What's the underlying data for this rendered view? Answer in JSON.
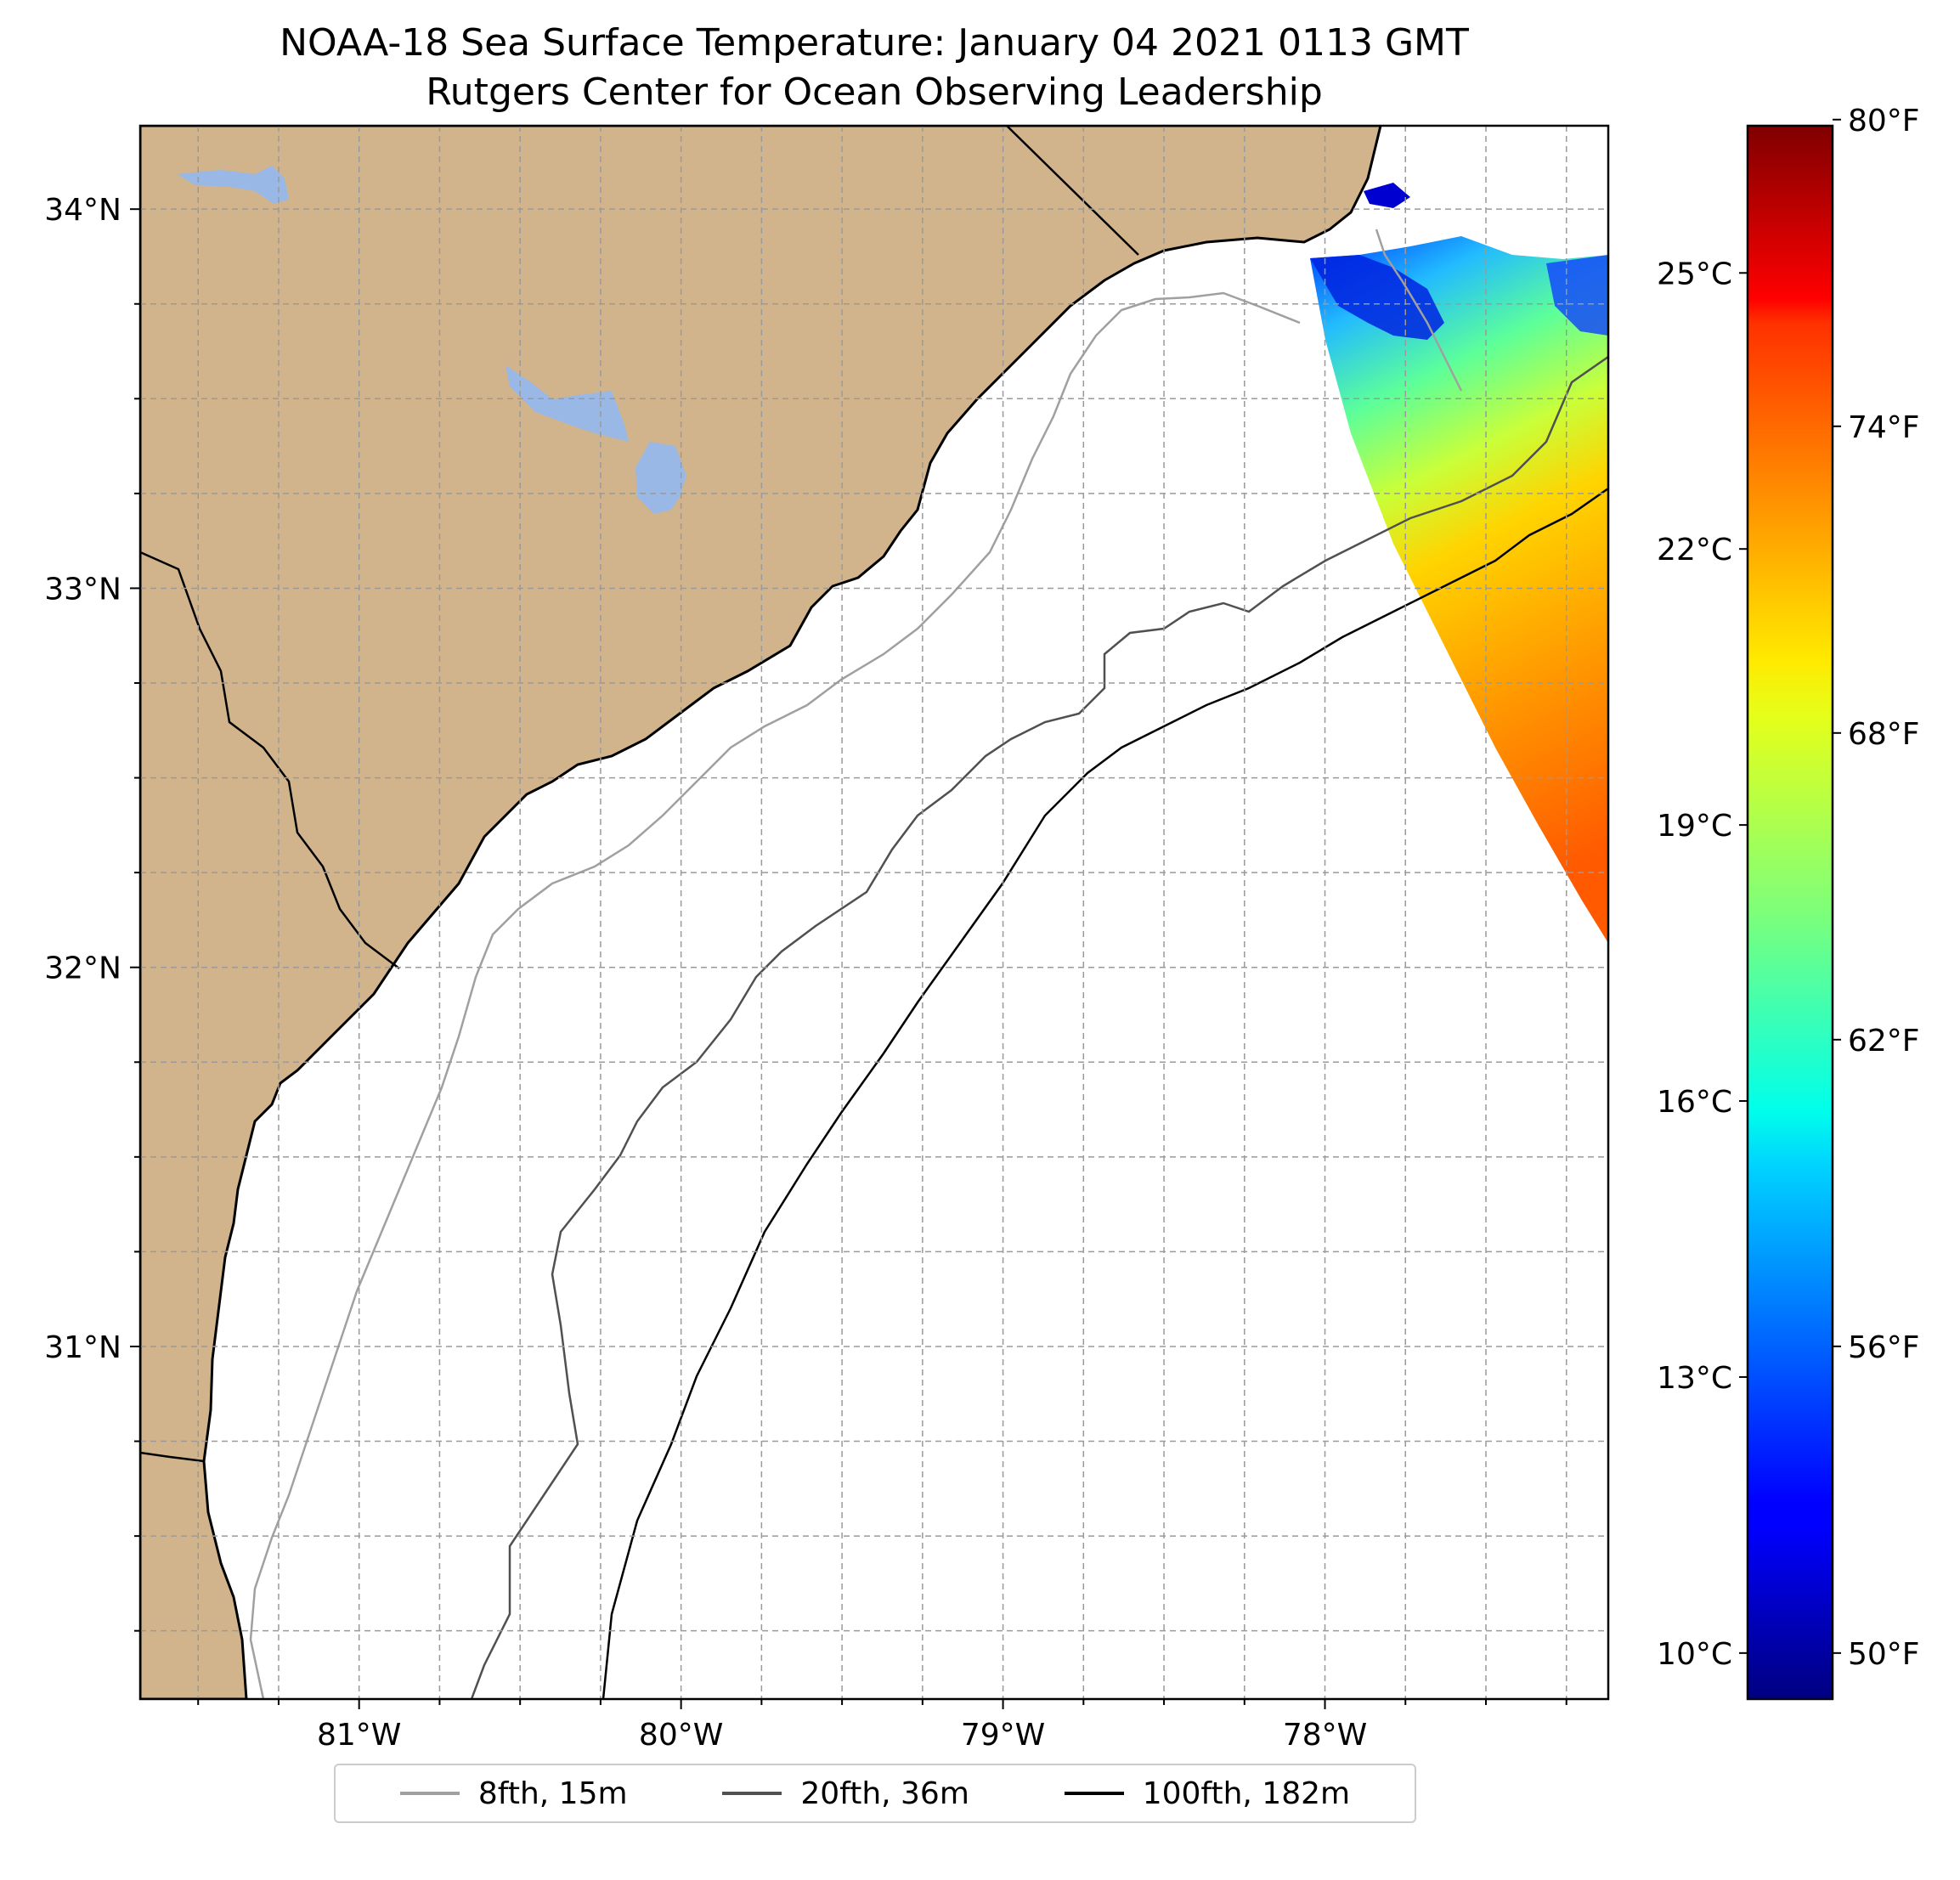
{
  "title_line1": "NOAA-18 Sea Surface Temperature: January 04 2021 0113 GMT",
  "title_line2": "Rutgers Center for Ocean Observing Leadership",
  "chart_data": {
    "type": "heatmap",
    "map_extent": {
      "lon_min": -81.68,
      "lon_max": -77.12,
      "lat_min": 30.07,
      "lat_max": 34.22
    },
    "longitude_ticks": [
      {
        "value": -81,
        "label": "81°W"
      },
      {
        "value": -80,
        "label": "80°W"
      },
      {
        "value": -79,
        "label": "79°W"
      },
      {
        "value": -78,
        "label": "78°W"
      }
    ],
    "latitude_ticks": [
      {
        "value": 34,
        "label": "34°N"
      },
      {
        "value": 33,
        "label": "33°N"
      },
      {
        "value": 32,
        "label": "32°N"
      },
      {
        "value": 31,
        "label": "31°N"
      }
    ],
    "gridlines": true,
    "land_color": "#d2b48c",
    "lake_color": "#99b8e6",
    "colorbar": {
      "colormap": "jet",
      "range_c": [
        9.5,
        26.6
      ],
      "celsius_ticks": [
        {
          "value": 10,
          "label": "10°C"
        },
        {
          "value": 13,
          "label": "13°C"
        },
        {
          "value": 16,
          "label": "16°C"
        },
        {
          "value": 19,
          "label": "19°C"
        },
        {
          "value": 22,
          "label": "22°C"
        },
        {
          "value": 25,
          "label": "25°C"
        }
      ],
      "fahrenheit_ticks": [
        {
          "value": 50,
          "label": "50°F"
        },
        {
          "value": 56,
          "label": "56°F"
        },
        {
          "value": 62,
          "label": "62°F"
        },
        {
          "value": 68,
          "label": "68°F"
        },
        {
          "value": 74,
          "label": "74°F"
        },
        {
          "value": 80,
          "label": "80°F"
        }
      ]
    },
    "sst_swath_approx_c": {
      "north_near_coast": 11,
      "middle": 19,
      "southeast": 23.5
    },
    "isobaths": [
      {
        "label": "8fth, 15m",
        "color": "#a0a0a0"
      },
      {
        "label": "20fth, 36m",
        "color": "#505050"
      },
      {
        "label": "100fth, 182m",
        "color": "#000000"
      }
    ]
  }
}
